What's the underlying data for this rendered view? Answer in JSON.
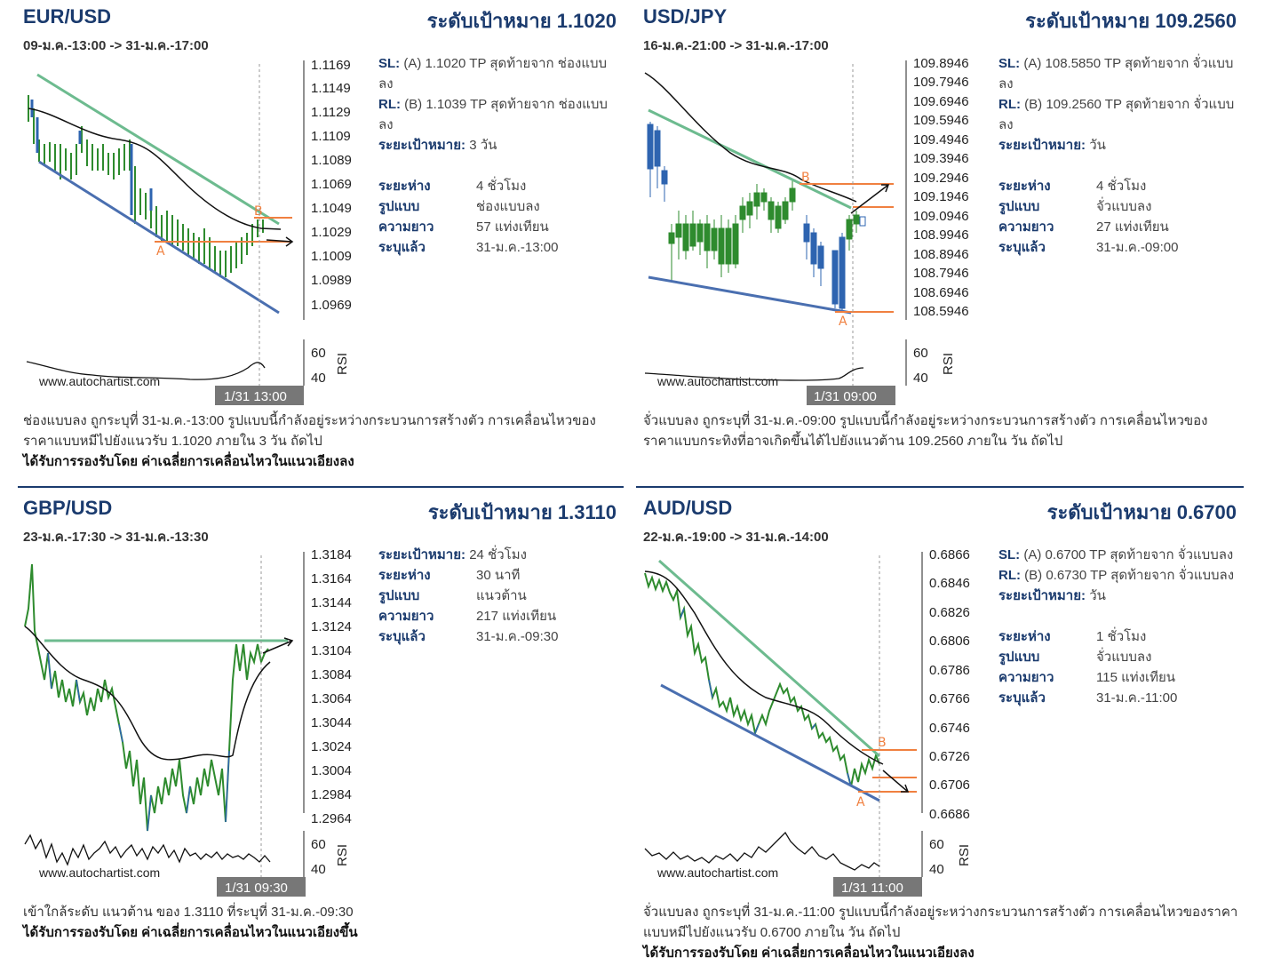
{
  "panels": [
    {
      "symbol": "EUR/USD",
      "target": "ระดับเป้าหมาย 1.1020",
      "range": "09-ม.ค.-13:00 -> 31-ม.ค.-17:00",
      "price_ticks": [
        "1.1169",
        "1.1149",
        "1.1129",
        "1.1109",
        "1.1089",
        "1.1069",
        "1.1049",
        "1.1029",
        "1.1009",
        "1.0989",
        "1.0969"
      ],
      "rsi_ticks": [
        "60",
        "40"
      ],
      "rsi_label": "RSI",
      "watermark": "www.autochartist.com",
      "timestamp": "1/31 13:00",
      "point_a": "A",
      "point_b": "B",
      "info": {
        "sl_key": "SL:",
        "sl_val": "(A) 1.1020 TP สุดท้ายจาก ช่องแบบลง",
        "rl_key": "RL:",
        "rl_val": "(B) 1.1039 TP สุดท้ายจาก ช่องแบบลง",
        "tgt_key": "ระยะเป้าหมาย:",
        "tgt_val": "3 วัน",
        "int_key": "ระยะห่าง",
        "int_val": "4 ชั่วโมง",
        "pat_key": "รูปแบบ",
        "pat_val": "ช่องแบบลง",
        "len_key": "ความยาว",
        "len_val": "57 แท่งเทียน",
        "id_key": "ระบุแล้ว",
        "id_val": "31-ม.ค.-13:00"
      },
      "desc": "ช่องแบบลง ถูกระบุที่ 31-ม.ค.-13:00 รูปแบบนี้กำลังอยู่ระหว่างกระบวนการสร้างตัว การเคลื่อนไหวของราคาแบบหมีไปยังแนวรับ 1.1020 ภายใน 3 วัน ถัดไป",
      "support": "ได้รับการรองรับโดย ค่าเฉลี่ยการเคลื่อนไหวในแนวเอียงลง"
    },
    {
      "symbol": "USD/JPY",
      "target": "ระดับเป้าหมาย 109.2560",
      "range": "16-ม.ค.-21:00 -> 31-ม.ค.-17:00",
      "price_ticks": [
        "109.8946",
        "109.7946",
        "109.6946",
        "109.5946",
        "109.4946",
        "109.3946",
        "109.2946",
        "109.1946",
        "109.0946",
        "108.9946",
        "108.8946",
        "108.7946",
        "108.6946",
        "108.5946"
      ],
      "rsi_ticks": [
        "60",
        "40"
      ],
      "rsi_label": "RSI",
      "watermark": "www.autochartist.com",
      "timestamp": "1/31 09:00",
      "point_a": "A",
      "point_b": "B",
      "info": {
        "sl_key": "SL:",
        "sl_val": "(A) 108.5850 TP สุดท้ายจาก จั่วแบบลง",
        "rl_key": "RL:",
        "rl_val": "(B) 109.2560 TP สุดท้ายจาก จั่วแบบลง",
        "tgt_key": "ระยะเป้าหมาย:",
        "tgt_val": "วัน",
        "int_key": "ระยะห่าง",
        "int_val": "4 ชั่วโมง",
        "pat_key": "รูปแบบ",
        "pat_val": "จั่วแบบลง",
        "len_key": "ความยาว",
        "len_val": "27 แท่งเทียน",
        "id_key": "ระบุแล้ว",
        "id_val": "31-ม.ค.-09:00"
      },
      "desc": "จั่วแบบลง ถูกระบุที่ 31-ม.ค.-09:00 รูปแบบนี้กำลังอยู่ระหว่างกระบวนการสร้างตัว การเคลื่อนไหวของราคาแบบกระทิงที่อาจเกิดขึ้นได้ไปยังแนวต้าน 109.2560 ภายใน วัน ถัดไป",
      "support": ""
    },
    {
      "symbol": "GBP/USD",
      "target": "ระดับเป้าหมาย 1.3110",
      "range": "23-ม.ค.-17:30 -> 31-ม.ค.-13:30",
      "price_ticks": [
        "1.3184",
        "1.3164",
        "1.3144",
        "1.3124",
        "1.3104",
        "1.3084",
        "1.3064",
        "1.3044",
        "1.3024",
        "1.3004",
        "1.2984",
        "1.2964"
      ],
      "rsi_ticks": [
        "60",
        "40"
      ],
      "rsi_label": "RSI",
      "watermark": "www.autochartist.com",
      "timestamp": "1/31 09:30",
      "point_a": "",
      "point_b": "",
      "info": {
        "tgt_key": "ระยะเป้าหมาย:",
        "tgt_val": "24 ชั่วโมง",
        "int_key": "ระยะห่าง",
        "int_val": "30 นาที",
        "pat_key": "รูปแบบ",
        "pat_val": "แนวต้าน",
        "len_key": "ความยาว",
        "len_val": "217 แท่งเทียน",
        "id_key": "ระบุแล้ว",
        "id_val": "31-ม.ค.-09:30"
      },
      "desc": "เข้าใกล้ระดับ แนวต้าน ของ 1.3110 ที่ระบุที่ 31-ม.ค.-09:30",
      "support": "ได้รับการรองรับโดย ค่าเฉลี่ยการเคลื่อนไหวในแนวเอียงขึ้น"
    },
    {
      "symbol": "AUD/USD",
      "target": "ระดับเป้าหมาย 0.6700",
      "range": "22-ม.ค.-19:00 -> 31-ม.ค.-14:00",
      "price_ticks": [
        "0.6866",
        "0.6846",
        "0.6826",
        "0.6806",
        "0.6786",
        "0.6766",
        "0.6746",
        "0.6726",
        "0.6706",
        "0.6686"
      ],
      "rsi_ticks": [
        "60",
        "40"
      ],
      "rsi_label": "RSI",
      "watermark": "www.autochartist.com",
      "timestamp": "1/31 11:00",
      "point_a": "A",
      "point_b": "B",
      "info": {
        "sl_key": "SL:",
        "sl_val": "(A) 0.6700 TP สุดท้ายจาก จั่วแบบลง",
        "rl_key": "RL:",
        "rl_val": "(B) 0.6730 TP สุดท้ายจาก จั่วแบบลง",
        "tgt_key": "ระยะเป้าหมาย:",
        "tgt_val": "วัน",
        "int_key": "ระยะห่าง",
        "int_val": "1 ชั่วโมง",
        "pat_key": "รูปแบบ",
        "pat_val": "จั่วแบบลง",
        "len_key": "ความยาว",
        "len_val": "115 แท่งเทียน",
        "id_key": "ระบุแล้ว",
        "id_val": "31-ม.ค.-11:00"
      },
      "desc": "จั่วแบบลง ถูกระบุที่ 31-ม.ค.-11:00 รูปแบบนี้กำลังอยู่ระหว่างกระบวนการสร้างตัว การเคลื่อนไหวของราคาแบบหมีไปยังแนวรับ 0.6700 ภายใน วัน ถัดไป",
      "support": "ได้รับการรองรับโดย ค่าเฉลี่ยการเคลื่อนไหวในแนวเอียงลง"
    }
  ],
  "colors": {
    "title": "#1b3b6e",
    "bull": "#2e8b2e",
    "bear": "#2e64b0",
    "channel_upper": "#6dbb8f",
    "channel_lower": "#4a6fb0",
    "target_line": "#f08040"
  }
}
